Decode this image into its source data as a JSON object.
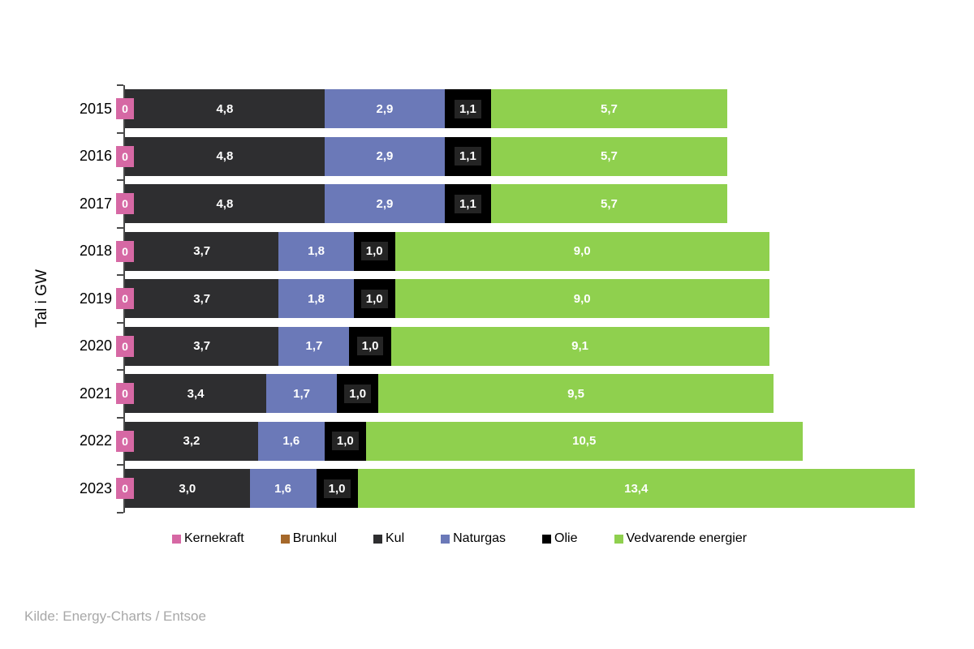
{
  "y_axis_title": "Tal i GW",
  "source": "Kilde: Energy-Charts / Entsoe",
  "colors": {
    "kernekraft": "#d668a4",
    "brunkul": "#a5682a",
    "kul": "#2e2e30",
    "naturgas": "#6b79b8",
    "olie": "#000000",
    "vedvarende": "#8fd04e",
    "axis": "#4a4a4a",
    "source_text": "#a8a8a8"
  },
  "chart_data": {
    "type": "bar",
    "orientation": "horizontal-stacked",
    "unit": "GW",
    "ylabel": "Tal i GW",
    "legend_position": "bottom",
    "xlim": [
      0,
      19.2
    ],
    "categories": [
      "2015",
      "2016",
      "2017",
      "2018",
      "2019",
      "2020",
      "2021",
      "2022",
      "2023"
    ],
    "series": [
      {
        "name": "Kernekraft",
        "color": "#d668a4",
        "values": [
          0,
          0,
          0,
          0,
          0,
          0,
          0,
          0,
          0
        ],
        "labels": [
          "0",
          "0",
          "0",
          "0",
          "0",
          "0",
          "0",
          "0",
          "0"
        ]
      },
      {
        "name": "Brunkul",
        "color": "#a5682a",
        "values": [
          0,
          0,
          0,
          0,
          0,
          0,
          0,
          0,
          0
        ],
        "labels": [
          "",
          "",
          "",
          "",
          "",
          "",
          "",
          "",
          ""
        ]
      },
      {
        "name": "Kul",
        "color": "#2e2e30",
        "values": [
          4.8,
          4.8,
          4.8,
          3.7,
          3.7,
          3.7,
          3.4,
          3.2,
          3.0
        ],
        "labels": [
          "4,8",
          "4,8",
          "4,8",
          "3,7",
          "3,7",
          "3,7",
          "3,4",
          "3,2",
          "3,0"
        ]
      },
      {
        "name": "Naturgas",
        "color": "#6b79b8",
        "values": [
          2.9,
          2.9,
          2.9,
          1.8,
          1.8,
          1.7,
          1.7,
          1.6,
          1.6
        ],
        "labels": [
          "2,9",
          "2,9",
          "2,9",
          "1,8",
          "1,8",
          "1,7",
          "1,7",
          "1,6",
          "1,6"
        ]
      },
      {
        "name": "Olie",
        "color": "#000000",
        "boxed_labels": true,
        "values": [
          1.1,
          1.1,
          1.1,
          1.0,
          1.0,
          1.0,
          1.0,
          1.0,
          1.0
        ],
        "labels": [
          "1,1",
          "1,1",
          "1,1",
          "1,0",
          "1,0",
          "1,0",
          "1,0",
          "1,0",
          "1,0"
        ]
      },
      {
        "name": "Vedvarende energier",
        "color": "#8fd04e",
        "values": [
          5.7,
          5.7,
          5.7,
          9.0,
          9.0,
          9.1,
          9.5,
          10.5,
          13.4
        ],
        "labels": [
          "5,7",
          "5,7",
          "5,7",
          "9,0",
          "9,0",
          "9,1",
          "9,5",
          "10,5",
          "13,4"
        ]
      }
    ]
  }
}
